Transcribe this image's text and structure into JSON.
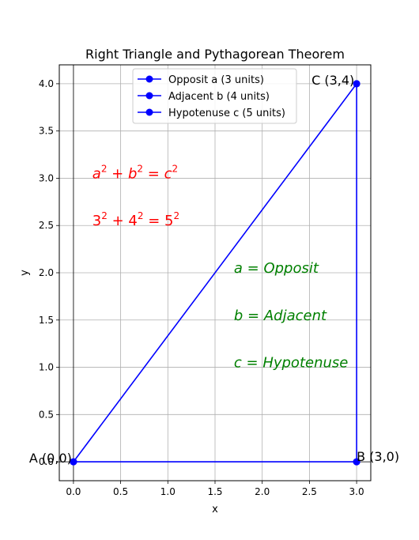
{
  "chart_data": {
    "type": "line",
    "title": "Right Triangle and Pythagorean Theorem",
    "xlabel": "x",
    "ylabel": "y",
    "xlim": [
      -0.15,
      3.15
    ],
    "ylim": [
      -0.2,
      4.2
    ],
    "grid": true,
    "x_ticks": [
      "0.0",
      "0.5",
      "1.0",
      "1.5",
      "2.0",
      "2.5",
      "3.0"
    ],
    "y_ticks": [
      "0.0",
      "0.5",
      "1.0",
      "1.5",
      "2.0",
      "2.5",
      "3.0",
      "3.5",
      "4.0"
    ],
    "legend_placement": "top-center",
    "series": [
      {
        "name": "Opposit a (3 units)",
        "x": [
          0,
          3
        ],
        "y": [
          0,
          0
        ],
        "color": "#0000ff"
      },
      {
        "name": "Adjacent b (4 units)",
        "x": [
          3,
          3
        ],
        "y": [
          0,
          4
        ],
        "color": "#0000ff"
      },
      {
        "name": "Hypotenuse c (5 units)",
        "x": [
          0,
          3
        ],
        "y": [
          0,
          4
        ],
        "color": "#0000ff"
      }
    ],
    "point_labels": [
      {
        "text": "A (0,0)",
        "x": 0,
        "y": 0
      },
      {
        "text": "B (3,0)",
        "x": 3,
        "y": 0
      },
      {
        "text": "C (3,4)",
        "x": 3,
        "y": 4
      }
    ],
    "annotations": [
      {
        "base": [
          "a",
          "b",
          "c"
        ],
        "sup": "2",
        "ops": [
          " + ",
          " = "
        ],
        "x": 0.2,
        "y": 3.0,
        "color": "#ff0000"
      },
      {
        "base": [
          "3",
          "4",
          "5"
        ],
        "sup": "2",
        "ops": [
          " + ",
          " = "
        ],
        "x": 0.2,
        "y": 2.5,
        "color": "#ff0000"
      },
      {
        "lhs": "a",
        "rhs": "Opposit",
        "x": 1.7,
        "y": 2.0,
        "color": "#008000"
      },
      {
        "lhs": "b",
        "rhs": "Adjacent",
        "x": 1.7,
        "y": 1.5,
        "color": "#008000"
      },
      {
        "lhs": "c",
        "rhs": "Hypotenuse",
        "x": 1.7,
        "y": 1.0,
        "color": "#008000"
      }
    ]
  }
}
